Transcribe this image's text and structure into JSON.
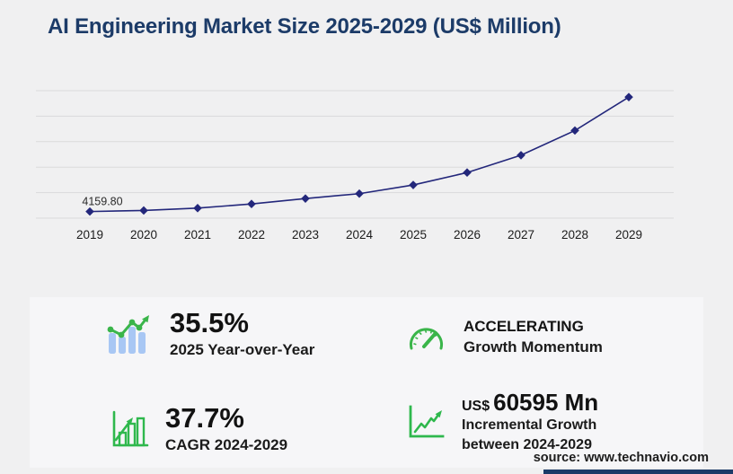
{
  "title": "AI Engineering Market Size 2025-2029 (US$ Million)",
  "colors": {
    "title": "#1c3b68",
    "series": "#23277b",
    "gridline": "#dadadb",
    "background": "#f0f0f1",
    "panel": "#f6f6f8",
    "green": "#3ab54a",
    "bar_blue": "#a8c7f4",
    "tick_text": "#1c1c1c",
    "accent_bar": "#1c3b68"
  },
  "chart_data": {
    "type": "line",
    "x": [
      2019,
      2020,
      2021,
      2022,
      2023,
      2024,
      2025,
      2026,
      2027,
      2028,
      2029
    ],
    "series": [
      {
        "name": "AI Engineering Market Size (US$ Million)",
        "values": [
          4159.8,
          4800,
          6300,
          8900,
          12300,
          15360,
          20820,
          28600,
          39500,
          55000,
          75960
        ]
      }
    ],
    "title": "AI Engineering Market Size 2025-2029 (US$ Million)",
    "xlabel": "",
    "ylabel": "",
    "ylim": [
      0,
      80000
    ],
    "grid": "horizontal",
    "gridline_count": 6,
    "marker": "diamond",
    "legend": "none",
    "point_label": {
      "x": 2019,
      "text": "4159.80"
    }
  },
  "stats": [
    {
      "id": "yoy",
      "icon": "bar-trend-icon",
      "value": "35.5%",
      "label": "2025 Year-over-Year"
    },
    {
      "id": "cagr",
      "icon": "bar-growth-icon",
      "value": "37.7%",
      "label": "CAGR 2024-2029"
    },
    {
      "id": "momentum",
      "icon": "gauge-icon",
      "value": "ACCELERATING",
      "label": "Growth Momentum"
    },
    {
      "id": "incremental",
      "icon": "line-growth-icon",
      "value_prefix": "US$",
      "value": "60595 Mn",
      "label": "Incremental Growth",
      "label2": "between 2024-2029"
    }
  ],
  "source": "source: www.technavio.com"
}
